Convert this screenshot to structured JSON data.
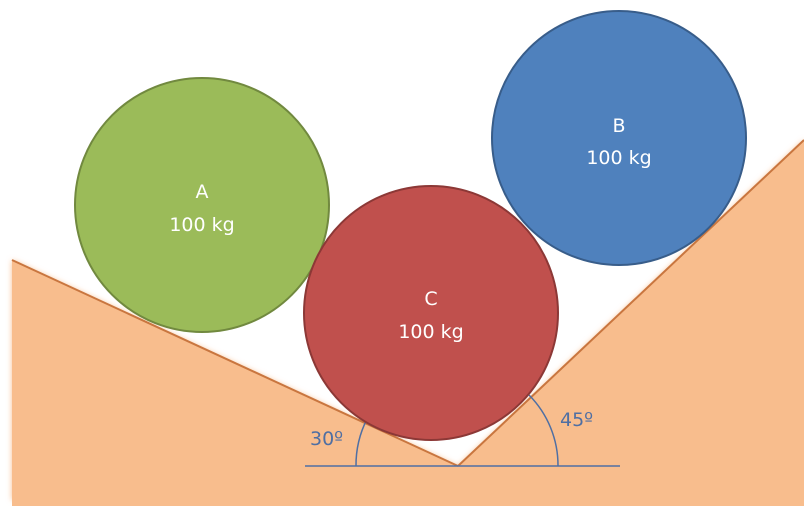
{
  "colors": {
    "ground_fill": "#f8bd8d",
    "ground_edge": "#c9763f",
    "angle_line": "#4f6fa3",
    "angle_text": "#4f6fa3",
    "ball_text": "#ffffff"
  },
  "balls": {
    "a": {
      "name": "A",
      "mass": "100 kg",
      "fill": "#9bbb59",
      "stroke": "#71893f"
    },
    "b": {
      "name": "B",
      "mass": "100 kg",
      "fill": "#4f81bd",
      "stroke": "#385d8a"
    },
    "c": {
      "name": "C",
      "mass": "100 kg",
      "fill": "#c0504d",
      "stroke": "#8c3836"
    }
  },
  "angles": {
    "left": "30º",
    "right": "45º"
  }
}
